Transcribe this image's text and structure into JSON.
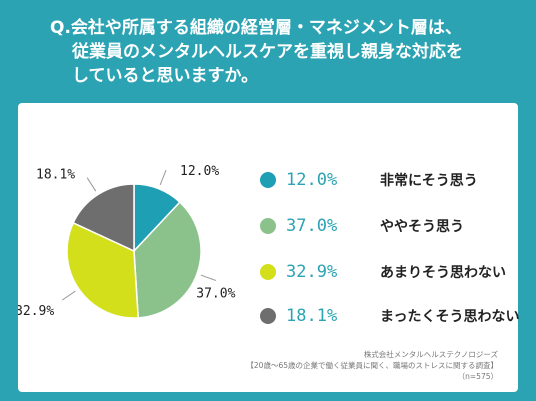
{
  "question": {
    "lines": [
      "Q.会社や所属する組織の経営層・マネジメント層は、",
      "従業員のメンタルヘルスケアを重視し親身な対応を",
      "していると思いますか。"
    ]
  },
  "chart_data": {
    "type": "pie",
    "slices": [
      {
        "label": "非常にそう思う",
        "value": 12.0,
        "display": "12.0%",
        "color": "#1e9fb3"
      },
      {
        "label": "ややそう思う",
        "value": 37.0,
        "display": "37.0%",
        "color": "#8bc28c"
      },
      {
        "label": "あまりそう思わない",
        "value": 32.9,
        "display": "32.9%",
        "color": "#d4df1c"
      },
      {
        "label": "まったくそう思わない",
        "value": 18.1,
        "display": "18.1%",
        "color": "#6e6e6e"
      }
    ]
  },
  "source": {
    "lines": [
      "株式会社メンタルヘルステクノロジーズ",
      "【20歳～65歳の企業で働く従業員に聞く、職場のストレスに関する調査】",
      "（n=575）"
    ]
  }
}
